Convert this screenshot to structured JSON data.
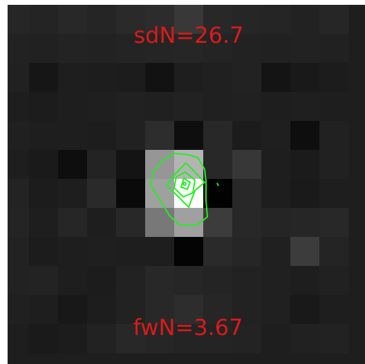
{
  "labels": {
    "top": "sdN=26.7",
    "bottom": "fwN=3.67"
  },
  "colors": {
    "label": "#dd1a1a",
    "contour": "#22ee22",
    "frame": "#ffffff",
    "background": "#1e1e1e"
  },
  "image": {
    "grid_columns": 12,
    "grid_rows": 12,
    "pixel_gray": [
      [
        38,
        36,
        40,
        37,
        42,
        44,
        56,
        40,
        38,
        37,
        34,
        38
      ],
      [
        34,
        33,
        35,
        34,
        36,
        37,
        38,
        36,
        34,
        33,
        34,
        33
      ],
      [
        33,
        22,
        30,
        29,
        28,
        18,
        30,
        32,
        34,
        20,
        25,
        28
      ],
      [
        30,
        28,
        30,
        31,
        33,
        32,
        34,
        32,
        33,
        30,
        31,
        30
      ],
      [
        32,
        30,
        30,
        29,
        33,
        45,
        14,
        40,
        28,
        31,
        14,
        33
      ],
      [
        30,
        26,
        14,
        35,
        20,
        150,
        180,
        40,
        55,
        30,
        27,
        33
      ],
      [
        35,
        28,
        30,
        42,
        10,
        160,
        255,
        2,
        40,
        30,
        26,
        30
      ],
      [
        36,
        30,
        38,
        30,
        40,
        120,
        160,
        60,
        40,
        37,
        38,
        40
      ],
      [
        34,
        28,
        30,
        31,
        30,
        30,
        4,
        42,
        38,
        32,
        60,
        36
      ],
      [
        34,
        35,
        30,
        28,
        34,
        40,
        38,
        36,
        34,
        32,
        30,
        33
      ],
      [
        32,
        30,
        24,
        29,
        34,
        40,
        45,
        38,
        34,
        32,
        25,
        30
      ],
      [
        30,
        26,
        28,
        34,
        40,
        38,
        36,
        36,
        35,
        30,
        33,
        34
      ]
    ]
  }
}
